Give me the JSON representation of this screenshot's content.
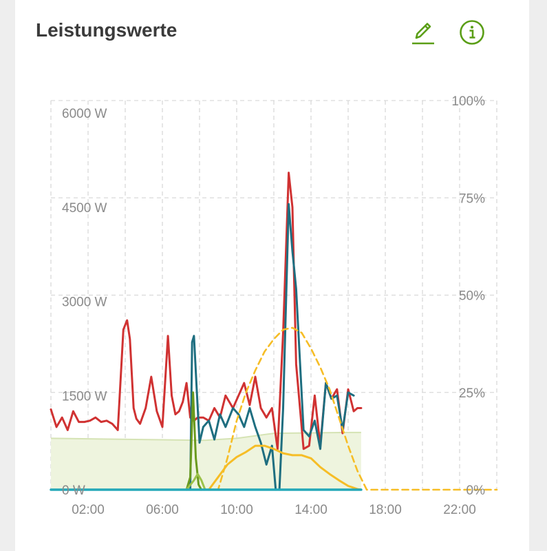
{
  "header": {
    "title": "Leistungswerte",
    "edit_icon": "pencil-icon",
    "info_icon": "info-circle-icon"
  },
  "colors": {
    "green_area_fill": "#eef4de",
    "green_area_line": "#d5e3b4",
    "red": "#d03232",
    "teal": "#1e6e80",
    "olive": "#6a9a1e",
    "light_green": "#9cc24a",
    "yellow": "#f6bd26",
    "cyan": "#23a8b8",
    "accent": "#5a9e16"
  },
  "chart_data": {
    "type": "line",
    "title": "",
    "xlabel": "",
    "ylabel": "",
    "x_ticks": [
      "02:00",
      "06:00",
      "10:00",
      "14:00",
      "18:00",
      "22:00"
    ],
    "y_ticks_left": [
      "6000 W",
      "4500 W",
      "3000 W",
      "1500 W",
      "0 W"
    ],
    "y_ticks_right": [
      "100%",
      "75%",
      "50%",
      "25%",
      "0%"
    ],
    "xlim": [
      0,
      24
    ],
    "ylim_left": [
      0,
      6200
    ],
    "ylim_right": [
      0,
      100
    ],
    "grid": true,
    "series": [
      {
        "key": "state_of_charge",
        "axis": "right",
        "style": "area",
        "color": "#eef4de",
        "x": [
          0,
          8,
          8.3,
          10,
          12,
          14,
          16,
          16.7
        ],
        "y": [
          13.2,
          12.7,
          12.7,
          13.2,
          14.5,
          14.6,
          14.7,
          14.7
        ]
      },
      {
        "key": "red_power",
        "axis": "left",
        "style": "line",
        "color": "#d03232",
        "x": [
          0,
          0.3,
          0.6,
          0.9,
          1.2,
          1.5,
          1.8,
          2.1,
          2.4,
          2.7,
          3.0,
          3.3,
          3.6,
          3.9,
          4.1,
          4.25,
          4.45,
          4.6,
          4.8,
          5.1,
          5.4,
          5.7,
          6.0,
          6.3,
          6.5,
          6.7,
          6.9,
          7.1,
          7.3,
          7.5,
          7.7,
          7.9,
          8.2,
          8.5,
          8.8,
          9.1,
          9.4,
          9.6,
          9.8,
          10.1,
          10.4,
          10.7,
          11.0,
          11.3,
          11.6,
          11.9,
          12.2,
          12.5,
          12.8,
          13.0,
          13.2,
          13.6,
          13.9,
          14.2,
          14.5,
          14.8,
          15.1,
          15.4,
          15.7,
          16.0,
          16.3,
          16.5,
          16.7
        ],
        "y": [
          1280,
          1000,
          1150,
          950,
          1250,
          1080,
          1080,
          1100,
          1150,
          1080,
          1100,
          1050,
          950,
          2550,
          2700,
          2400,
          1300,
          1130,
          1050,
          1300,
          1800,
          1250,
          1000,
          2450,
          1500,
          1200,
          1250,
          1400,
          1700,
          1150,
          1100,
          1150,
          1150,
          1100,
          1300,
          1150,
          1500,
          1400,
          1300,
          1500,
          1700,
          1350,
          1800,
          1300,
          1150,
          1300,
          650,
          2500,
          5050,
          4500,
          2000,
          650,
          700,
          1500,
          700,
          1700,
          1450,
          1600,
          900,
          1600,
          1250,
          1300,
          1300
        ]
      },
      {
        "key": "teal_power",
        "axis": "left",
        "style": "line",
        "color": "#1e6e80",
        "x": [
          7.5,
          7.6,
          7.7,
          7.85,
          8.0,
          8.2,
          8.5,
          8.8,
          9.1,
          9.4,
          9.6,
          9.8,
          10.1,
          10.4,
          10.7,
          11.0,
          11.3,
          11.6,
          11.9,
          12.1,
          12.3,
          12.5,
          12.8,
          13.0,
          13.2,
          13.6,
          13.9,
          14.2,
          14.5,
          14.8,
          15.1,
          15.4,
          15.7,
          16.0,
          16.3
        ],
        "y": [
          0,
          2350,
          2450,
          1600,
          750,
          1000,
          1100,
          800,
          1200,
          1000,
          1150,
          1300,
          1200,
          1000,
          1300,
          1000,
          750,
          400,
          700,
          0,
          0,
          1300,
          4550,
          3800,
          3200,
          950,
          850,
          1100,
          650,
          1700,
          1450,
          1500,
          950,
          1550,
          1500
        ]
      },
      {
        "key": "olive_power",
        "axis": "left",
        "style": "line",
        "color": "#6a9a1e",
        "x": [
          7.3,
          7.5,
          7.65,
          7.8,
          7.95,
          8.1
        ],
        "y": [
          0,
          200,
          1550,
          500,
          80,
          0
        ]
      },
      {
        "key": "light_green_power",
        "axis": "left",
        "style": "line",
        "color": "#9cc24a",
        "x": [
          7.3,
          7.7,
          7.9,
          8.1,
          8.3
        ],
        "y": [
          0,
          150,
          250,
          150,
          0
        ]
      },
      {
        "key": "yellow_power",
        "axis": "left",
        "style": "line",
        "color": "#f6bd26",
        "x": [
          8.5,
          9.0,
          9.5,
          10.0,
          10.5,
          11.0,
          11.5,
          12.0,
          12.5,
          13.0,
          13.5,
          14.0,
          14.5,
          15.0,
          15.5,
          16.0,
          16.5,
          16.7
        ],
        "y": [
          0,
          200,
          400,
          520,
          600,
          700,
          700,
          650,
          580,
          550,
          550,
          500,
          360,
          250,
          150,
          60,
          10,
          0
        ]
      },
      {
        "key": "yellow_forecast",
        "axis": "left",
        "style": "dashed",
        "color": "#f6bd26",
        "x": [
          0,
          9.0,
          9.5,
          10.0,
          10.5,
          11.0,
          11.5,
          12.0,
          12.5,
          13.0,
          13.5,
          14.0,
          14.5,
          15.0,
          15.5,
          16.0,
          16.5,
          17.0,
          24
        ],
        "y": [
          0,
          0,
          500,
          1100,
          1550,
          1900,
          2200,
          2400,
          2550,
          2580,
          2500,
          2250,
          1950,
          1600,
          1150,
          700,
          300,
          0,
          0
        ]
      },
      {
        "key": "cyan_baseline",
        "axis": "left",
        "style": "line",
        "color": "#23a8b8",
        "x": [
          0,
          16.7
        ],
        "y": [
          0,
          0
        ]
      }
    ]
  }
}
